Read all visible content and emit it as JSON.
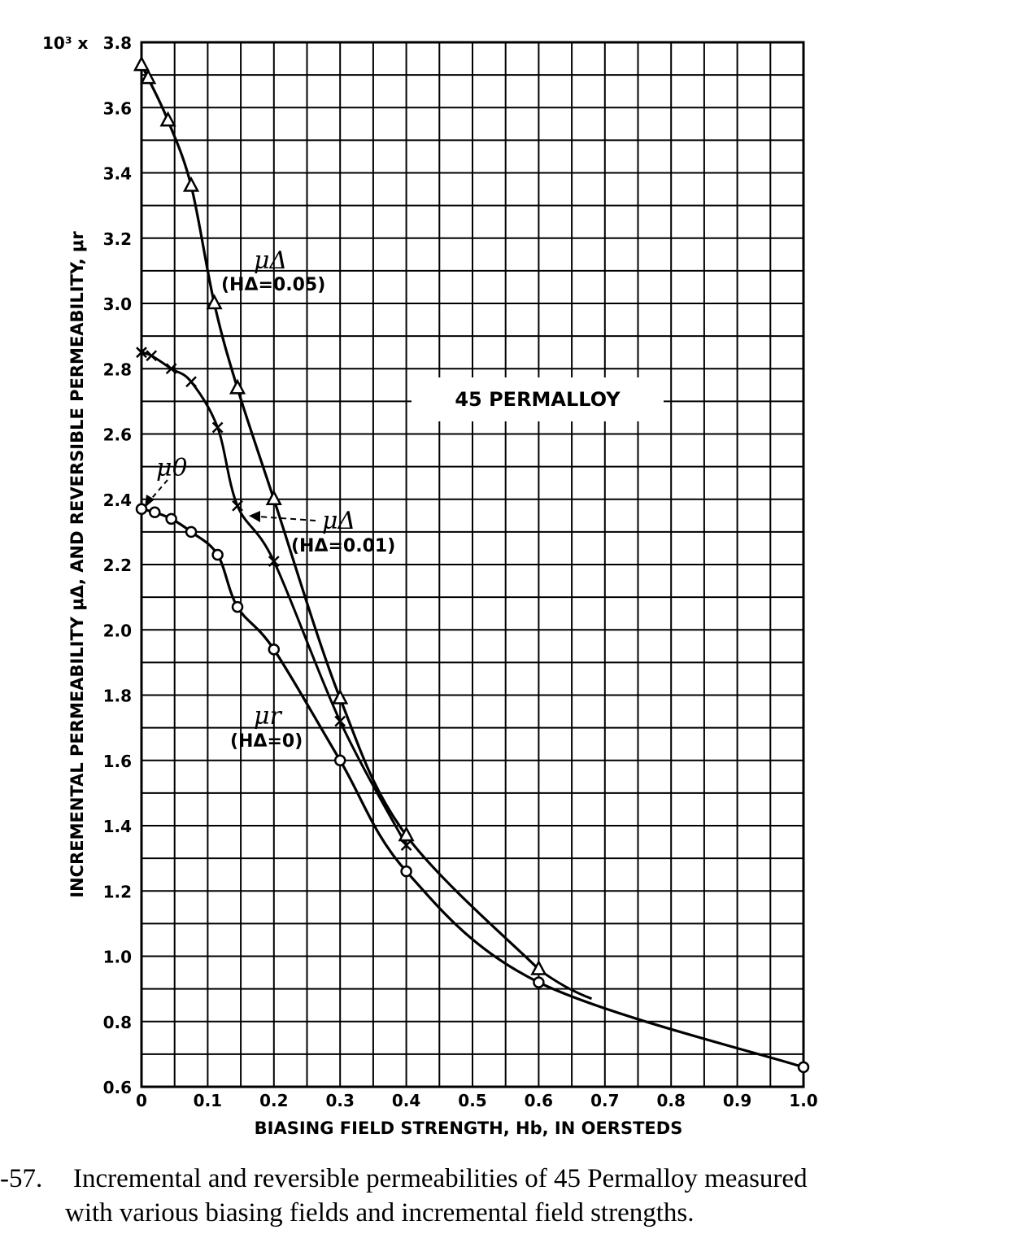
{
  "chart_data": {
    "type": "line",
    "title": "45 PERMALLOY",
    "xlabel": "BIASING FIELD STRENGTH, Hb, IN OERSTEDS",
    "ylabel": "INCREMENTAL PERMEABILITY μΔ, AND REVERSIBLE PERMEABILITY, μr",
    "y_multiplier": "10³ x",
    "xlim": [
      0,
      1.0
    ],
    "ylim": [
      0.6,
      3.8
    ],
    "xticks": [
      "0",
      "0.1",
      "0.2",
      "0.3",
      "0.4",
      "0.5",
      "0.6",
      "0.7",
      "0.8",
      "0.9",
      "1.0"
    ],
    "yticks": [
      "0.6",
      "0.8",
      "1.0",
      "1.2",
      "1.4",
      "1.6",
      "1.8",
      "2.0",
      "2.2",
      "2.4",
      "2.6",
      "2.8",
      "3.0",
      "3.2",
      "3.4",
      "3.6",
      "3.8"
    ],
    "grid": true,
    "series": [
      {
        "name": "μΔ (HΔ=0.05)",
        "symbol": "triangle",
        "x": [
          0,
          0.01,
          0.04,
          0.075,
          0.11,
          0.145,
          0.2,
          0.3,
          0.4,
          0.6
        ],
        "y": [
          3.73,
          3.69,
          3.56,
          3.36,
          3.0,
          2.74,
          2.4,
          1.79,
          1.37,
          0.96
        ]
      },
      {
        "name": "μΔ (HΔ=0.01)",
        "symbol": "cross",
        "x": [
          0,
          0.015,
          0.045,
          0.075,
          0.115,
          0.145,
          0.2,
          0.3,
          0.4
        ],
        "y": [
          2.85,
          2.84,
          2.8,
          2.76,
          2.62,
          2.38,
          2.21,
          1.72,
          1.34
        ]
      },
      {
        "name": "μr (HΔ=0)",
        "symbol": "circle",
        "x": [
          0,
          0.02,
          0.045,
          0.075,
          0.115,
          0.145,
          0.2,
          0.3,
          0.4,
          0.6,
          1.0
        ],
        "y": [
          2.37,
          2.36,
          2.34,
          2.3,
          2.23,
          2.07,
          1.94,
          1.6,
          1.26,
          0.92,
          0.66
        ]
      }
    ],
    "annotations": {
      "mu0": "μ0",
      "mu_delta_a": "μΔ",
      "h_delta_a": "(HΔ=0.05)",
      "mu_delta_b": "μΔ",
      "h_delta_b": "(HΔ=0.01)",
      "mu_r": "μr",
      "h_delta_c": "(HΔ=0)"
    }
  },
  "caption": {
    "number": "-57.",
    "line1": "Incremental and reversible permeabilities of 45 Permalloy measured",
    "line2": "with various biasing fields and incremental field strengths."
  }
}
